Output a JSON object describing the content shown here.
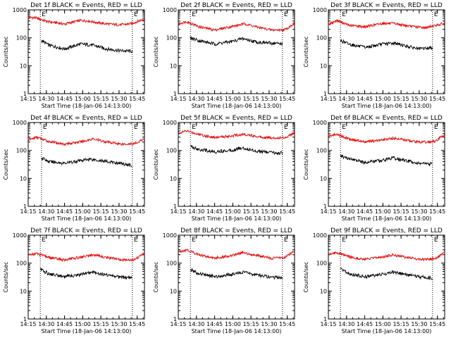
{
  "chart_data": [
    {
      "type": "line",
      "title": "Det 1f BLACK = Events, RED = LLD",
      "ylabel": "Counts/sec",
      "xlabel": "Start Time (18-Jan-06 14:13:00)",
      "yscale": "log",
      "ylim": [
        1,
        1000
      ],
      "xlim": [
        "14:15",
        "15:51"
      ],
      "xticks": [
        "14:15",
        "14:30",
        "14:45",
        "15:00",
        "15:15",
        "15:30",
        "15:45"
      ],
      "yticks": [
        "1",
        "10",
        "100",
        "1000"
      ],
      "markers": [
        {
          "label": "E",
          "time": "14:25"
        },
        {
          "label": "E",
          "time": "15:41"
        }
      ],
      "series": [
        {
          "color": "#ff0000",
          "start": "14:15",
          "end": "15:51",
          "x": [
            "14:15",
            "14:21",
            "14:30",
            "14:45",
            "14:58",
            "15:05",
            "15:15",
            "15:30",
            "15:40",
            "15:51"
          ],
          "y": [
            540,
            520,
            390,
            310,
            420,
            400,
            330,
            290,
            320,
            480
          ]
        },
        {
          "color": "#000000",
          "start": "14:26",
          "end": "15:41",
          "x": [
            "14:26",
            "14:32",
            "14:45",
            "14:58",
            "15:08",
            "15:20",
            "15:30",
            "15:41"
          ],
          "y": [
            80,
            55,
            40,
            60,
            55,
            40,
            35,
            33
          ]
        }
      ]
    },
    {
      "type": "line",
      "title": "Det 2f BLACK = Events, RED = LLD",
      "ylabel": "Counts/sec",
      "xlabel": "Start Time (18-Jan-06 14:13:00)",
      "yscale": "log",
      "ylim": [
        1,
        1000
      ],
      "xlim": [
        "14:15",
        "15:51"
      ],
      "xticks": [
        "14:15",
        "14:30",
        "14:45",
        "15:00",
        "15:15",
        "15:30",
        "15:45"
      ],
      "yticks": [
        "1",
        "10",
        "100",
        "1000"
      ],
      "markers": [
        {
          "label": "E",
          "time": "14:25"
        },
        {
          "label": "E",
          "time": "15:41"
        }
      ],
      "series": [
        {
          "color": "#ff0000",
          "start": "14:15",
          "end": "15:51",
          "x": [
            "14:15",
            "14:22",
            "14:32",
            "14:45",
            "15:00",
            "15:10",
            "15:20",
            "15:32",
            "15:43",
            "15:51"
          ],
          "y": [
            320,
            380,
            250,
            190,
            260,
            320,
            240,
            190,
            195,
            330
          ]
        },
        {
          "color": "#000000",
          "start": "14:25",
          "end": "15:41",
          "x": [
            "14:25",
            "14:32",
            "14:45",
            "15:00",
            "15:08",
            "15:20",
            "15:30",
            "15:41"
          ],
          "y": [
            100,
            80,
            60,
            75,
            95,
            70,
            65,
            62
          ]
        }
      ]
    },
    {
      "type": "line",
      "title": "Det 3f BLACK = Events, RED = LLD",
      "ylabel": "Counts/sec",
      "xlabel": "Start Time (18-Jan-06 14:13:00)",
      "yscale": "log",
      "ylim": [
        1,
        1000
      ],
      "xlim": [
        "14:15",
        "15:51"
      ],
      "xticks": [
        "14:15",
        "14:30",
        "14:45",
        "15:00",
        "15:15",
        "15:30",
        "15:45"
      ],
      "yticks": [
        "1",
        "10",
        "100",
        "1000"
      ],
      "markers": [
        {
          "label": "E",
          "time": "14:25"
        },
        {
          "label": "E",
          "time": "15:41"
        }
      ],
      "series": [
        {
          "color": "#ff0000",
          "start": "14:15",
          "end": "15:51",
          "x": [
            "14:15",
            "14:22",
            "14:32",
            "14:45",
            "15:00",
            "15:10",
            "15:22",
            "15:35",
            "15:51"
          ],
          "y": [
            300,
            420,
            280,
            250,
            330,
            320,
            260,
            230,
            330
          ]
        },
        {
          "color": "#000000",
          "start": "14:25",
          "end": "15:41",
          "x": [
            "14:25",
            "14:32",
            "14:45",
            "15:00",
            "15:10",
            "15:20",
            "15:30",
            "15:41"
          ],
          "y": [
            80,
            60,
            45,
            60,
            65,
            50,
            40,
            45
          ]
        }
      ]
    },
    {
      "type": "line",
      "title": "Det 4f BLACK = Events, RED = LLD",
      "ylabel": "Counts/sec",
      "xlabel": "Start Time (18-Jan-06 14:13:00)",
      "yscale": "log",
      "ylim": [
        1,
        1000
      ],
      "xlim": [
        "14:15",
        "15:51"
      ],
      "xticks": [
        "14:15",
        "14:30",
        "14:45",
        "15:00",
        "15:15",
        "15:30",
        "15:45"
      ],
      "yticks": [
        "1",
        "10",
        "100",
        "1000"
      ],
      "markers": [
        {
          "label": "E",
          "time": "14:26"
        },
        {
          "label": "E",
          "time": "15:41"
        }
      ],
      "series": [
        {
          "color": "#ff0000",
          "start": "14:15",
          "end": "15:51",
          "x": [
            "14:15",
            "14:22",
            "14:32",
            "14:45",
            "15:00",
            "15:08",
            "15:20",
            "15:32",
            "15:43",
            "15:51"
          ],
          "y": [
            240,
            300,
            210,
            170,
            210,
            260,
            200,
            170,
            175,
            260
          ]
        },
        {
          "color": "#000000",
          "start": "14:26",
          "end": "15:41",
          "x": [
            "14:26",
            "14:32",
            "14:45",
            "15:00",
            "15:06",
            "15:20",
            "15:30",
            "15:41"
          ],
          "y": [
            55,
            40,
            35,
            45,
            50,
            40,
            35,
            30
          ]
        }
      ]
    },
    {
      "type": "line",
      "title": "Det 5f BLACK = Events, RED = LLD",
      "ylabel": "Counts/sec",
      "xlabel": "Start Time (18-Jan-06 14:13:00)",
      "yscale": "log",
      "ylim": [
        1,
        1000
      ],
      "xlim": [
        "14:15",
        "15:51"
      ],
      "xticks": [
        "14:15",
        "14:30",
        "14:45",
        "15:00",
        "15:15",
        "15:30",
        "15:45"
      ],
      "yticks": [
        "1",
        "10",
        "100",
        "1000"
      ],
      "markers": [
        {
          "label": "E",
          "time": "14:25"
        },
        {
          "label": "E",
          "time": "15:41"
        }
      ],
      "series": [
        {
          "color": "#ff0000",
          "start": "14:15",
          "end": "15:51",
          "x": [
            "14:15",
            "14:22",
            "14:32",
            "14:45",
            "15:00",
            "15:10",
            "15:20",
            "15:32",
            "15:43",
            "15:51"
          ],
          "y": [
            420,
            500,
            380,
            290,
            340,
            380,
            320,
            280,
            290,
            430
          ]
        },
        {
          "color": "#000000",
          "start": "14:25",
          "end": "15:41",
          "x": [
            "14:25",
            "14:32",
            "14:45",
            "15:00",
            "15:08",
            "15:20",
            "15:30",
            "15:41"
          ],
          "y": [
            140,
            110,
            90,
            105,
            125,
            95,
            85,
            80
          ]
        }
      ]
    },
    {
      "type": "line",
      "title": "Det 6f BLACK = Events, RED = LLD",
      "ylabel": "Counts/sec",
      "xlabel": "Start Time (18-Jan-06 14:13:00)",
      "yscale": "log",
      "ylim": [
        1,
        1000
      ],
      "xlim": [
        "14:15",
        "15:51"
      ],
      "xticks": [
        "14:15",
        "14:30",
        "14:45",
        "15:00",
        "15:15",
        "15:30",
        "15:45"
      ],
      "yticks": [
        "1",
        "10",
        "100",
        "1000"
      ],
      "markers": [
        {
          "label": "E",
          "time": "14:25"
        },
        {
          "label": "E",
          "time": "15:41"
        }
      ],
      "series": [
        {
          "color": "#ff0000",
          "start": "14:15",
          "end": "15:51",
          "x": [
            "14:15",
            "14:22",
            "14:32",
            "14:45",
            "15:00",
            "15:10",
            "15:20",
            "15:32",
            "15:43",
            "15:51"
          ],
          "y": [
            330,
            380,
            260,
            200,
            240,
            280,
            230,
            200,
            210,
            370
          ]
        },
        {
          "color": "#000000",
          "start": "14:25",
          "end": "15:41",
          "x": [
            "14:25",
            "14:32",
            "14:45",
            "15:00",
            "15:08",
            "15:20",
            "15:30",
            "15:41"
          ],
          "y": [
            65,
            50,
            38,
            45,
            55,
            42,
            35,
            32
          ]
        }
      ]
    },
    {
      "type": "line",
      "title": "Det 7f BLACK = Events, RED = LLD",
      "ylabel": "Counts/sec",
      "xlabel": "Start Time (18-Jan-06 14:13:00)",
      "yscale": "log",
      "ylim": [
        1,
        1000
      ],
      "xlim": [
        "14:15",
        "15:51"
      ],
      "xticks": [
        "14:15",
        "14:30",
        "14:45",
        "15:00",
        "15:15",
        "15:30",
        "15:45"
      ],
      "yticks": [
        "1",
        "10",
        "100",
        "1000"
      ],
      "markers": [
        {
          "label": "E",
          "time": "14:25"
        },
        {
          "label": "E",
          "time": "15:41"
        }
      ],
      "series": [
        {
          "color": "#ff0000",
          "start": "14:15",
          "end": "15:51",
          "x": [
            "14:15",
            "14:22",
            "14:32",
            "14:45",
            "15:00",
            "15:08",
            "15:20",
            "15:32",
            "15:43",
            "15:51"
          ],
          "y": [
            200,
            220,
            160,
            130,
            170,
            200,
            160,
            130,
            135,
            230
          ]
        },
        {
          "color": "#000000",
          "start": "14:25",
          "end": "15:41",
          "x": [
            "14:25",
            "14:32",
            "14:45",
            "15:00",
            "15:08",
            "15:20",
            "15:30",
            "15:41"
          ],
          "y": [
            60,
            42,
            33,
            40,
            48,
            38,
            32,
            30
          ]
        }
      ]
    },
    {
      "type": "line",
      "title": "Det 8f BLACK = Events, RED = LLD",
      "ylabel": "Counts/sec",
      "xlabel": "Start Time (18-Jan-06 14:13:00)",
      "yscale": "log",
      "ylim": [
        1,
        1000
      ],
      "xlim": [
        "14:15",
        "15:51"
      ],
      "xticks": [
        "14:15",
        "14:30",
        "14:45",
        "15:00",
        "15:15",
        "15:30",
        "15:45"
      ],
      "yticks": [
        "1",
        "10",
        "100",
        "1000"
      ],
      "markers": [
        {
          "label": "E",
          "time": "14:25"
        },
        {
          "label": "E",
          "time": "15:41"
        }
      ],
      "series": [
        {
          "color": "#ff0000",
          "start": "14:15",
          "end": "15:51",
          "x": [
            "14:15",
            "14:22",
            "14:32",
            "14:45",
            "15:00",
            "15:08",
            "15:20",
            "15:32",
            "15:43",
            "15:51"
          ],
          "y": [
            260,
            300,
            200,
            150,
            190,
            240,
            190,
            150,
            160,
            280
          ]
        },
        {
          "color": "#000000",
          "start": "14:25",
          "end": "15:41",
          "x": [
            "14:25",
            "14:32",
            "14:45",
            "15:00",
            "15:08",
            "15:20",
            "15:30",
            "15:41"
          ],
          "y": [
            60,
            42,
            33,
            40,
            48,
            38,
            32,
            30
          ]
        }
      ]
    },
    {
      "type": "line",
      "title": "Det 9f BLACK = Events, RED = LLD",
      "ylabel": "Counts/sec",
      "xlabel": "Start Time (18-Jan-06 14:13:00)",
      "yscale": "log",
      "ylim": [
        1,
        1000
      ],
      "xlim": [
        "14:15",
        "15:51"
      ],
      "xticks": [
        "14:15",
        "14:30",
        "14:45",
        "15:00",
        "15:15",
        "15:30",
        "15:45"
      ],
      "yticks": [
        "1",
        "10",
        "100",
        "1000"
      ],
      "markers": [
        {
          "label": "E",
          "time": "14:25"
        },
        {
          "label": "E",
          "time": "15:41"
        }
      ],
      "series": [
        {
          "color": "#ff0000",
          "start": "14:15",
          "end": "15:51",
          "x": [
            "14:15",
            "14:22",
            "14:32",
            "14:45",
            "15:00",
            "15:08",
            "15:20",
            "15:32",
            "15:43",
            "15:51"
          ],
          "y": [
            210,
            240,
            170,
            135,
            170,
            200,
            160,
            135,
            140,
            240
          ]
        },
        {
          "color": "#000000",
          "start": "14:25",
          "end": "15:41",
          "x": [
            "14:25",
            "14:32",
            "14:45",
            "15:00",
            "15:08",
            "15:20",
            "15:30",
            "15:41"
          ],
          "y": [
            60,
            42,
            33,
            40,
            48,
            38,
            32,
            30
          ]
        }
      ]
    }
  ]
}
